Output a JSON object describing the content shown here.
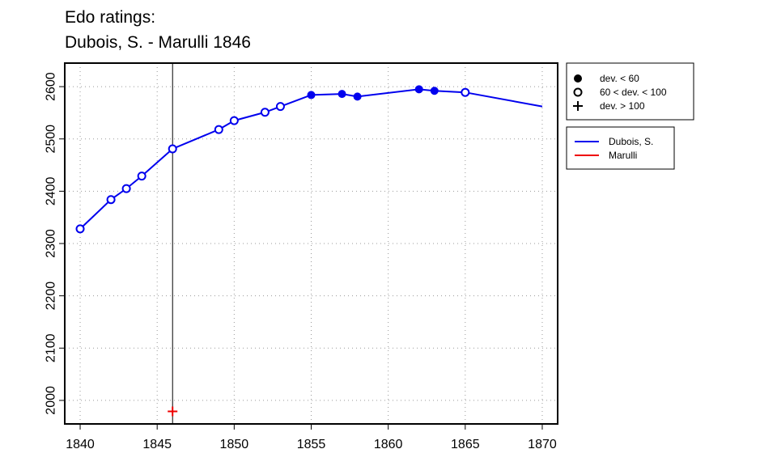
{
  "chart_data": {
    "type": "line",
    "title_lines": [
      "Edo ratings:",
      "Dubois, S. - Marulli 1846"
    ],
    "xlabel": "",
    "ylabel": "",
    "xlim": [
      1839,
      1871
    ],
    "ylim": [
      1955,
      2645
    ],
    "x_ticks": [
      1840,
      1845,
      1850,
      1855,
      1860,
      1865,
      1870
    ],
    "y_ticks": [
      2000,
      2100,
      2200,
      2300,
      2400,
      2500,
      2600
    ],
    "grid": "dotted",
    "vertical_line_x": 1846,
    "series": [
      {
        "name": "Dubois, S.",
        "color": "#0000ee",
        "x": [
          1840,
          1842,
          1843,
          1844,
          1846,
          1849,
          1850,
          1852,
          1853,
          1855,
          1857,
          1858,
          1862,
          1863,
          1865,
          1870
        ],
        "y": [
          2328,
          2384,
          2405,
          2429,
          2481,
          2518,
          2535,
          2551,
          2562,
          2584,
          2586,
          2581,
          2595,
          2592,
          2589,
          2562
        ],
        "markers": [
          "open",
          "open",
          "open",
          "open",
          "open",
          "open",
          "open",
          "open",
          "open",
          "filled",
          "filled",
          "filled",
          "filled",
          "filled",
          "open",
          "none"
        ]
      },
      {
        "name": "Marulli",
        "color": "#ee0000",
        "x": [
          1846
        ],
        "y": [
          1979
        ],
        "markers": [
          "plus"
        ]
      }
    ],
    "legend_markers": {
      "placement": "top-right-outside",
      "entries": [
        {
          "symbol": "filled",
          "label": "dev. < 60"
        },
        {
          "symbol": "open",
          "label": "60 < dev. < 100"
        },
        {
          "symbol": "plus",
          "label": "dev. > 100"
        }
      ]
    },
    "legend_series": {
      "placement": "right-outside",
      "entries": [
        {
          "label": "Dubois, S.",
          "color": "#0000ee"
        },
        {
          "label": "Marulli",
          "color": "#ee0000"
        }
      ]
    }
  }
}
